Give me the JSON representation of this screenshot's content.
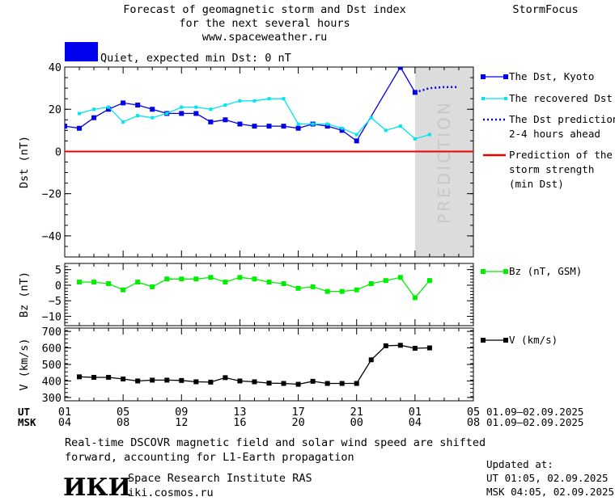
{
  "header": {
    "title_line1": "Forecast of geomagnetic storm and Dst index",
    "title_line2": "for the next several hours",
    "title_line3": "www.spaceweather.ru",
    "brand": "StormFocus",
    "status_text": "Quiet, expected min Dst: 0 nT",
    "status_color": "#0000ee"
  },
  "footer": {
    "note_line1": "Real-time DSCOVR magnetic field and solar wind speed are shifted",
    "note_line2": "forward, accounting for L1-Earth propagation",
    "logo_text": "ИКИ",
    "institute": "Space Research Institute RAS",
    "site": "iki.cosmos.ru",
    "updated_label": "Updated at:",
    "updated_ut": "UT   01:05, 02.09.2025",
    "updated_msk": "MSK 04:05, 02.09.2025"
  },
  "time_axis": {
    "ut_label": "UT",
    "msk_label": "MSK",
    "ut_ticks": [
      "01",
      "05",
      "09",
      "13",
      "17",
      "21",
      "01",
      "05"
    ],
    "msk_ticks": [
      "04",
      "08",
      "12",
      "16",
      "20",
      "00",
      "04",
      "08"
    ],
    "ut_range": "01.09–02.09.2025",
    "msk_range": "01.09–02.09.2025"
  },
  "chart_data": [
    {
      "id": "dst",
      "type": "line",
      "ylabel": "Dst (nT)",
      "ylim": [
        -50,
        40
      ],
      "yticks": [
        40,
        20,
        0,
        -20,
        -40
      ],
      "xlim": [
        0,
        28
      ],
      "prediction_band": [
        24,
        28
      ],
      "prediction_text": "PREDICTION",
      "series": [
        {
          "name": "The Dst, Kyoto",
          "color": "#0000ee",
          "style": "solid-square",
          "x": [
            0,
            1,
            2,
            3,
            4,
            5,
            6,
            7,
            8,
            9,
            10,
            11,
            12,
            13,
            14,
            15,
            16,
            17,
            18,
            19,
            20,
            23,
            24
          ],
          "y": [
            12,
            11,
            16,
            20,
            23,
            22,
            20,
            18,
            18,
            18,
            14,
            15,
            13,
            12,
            12,
            12,
            11,
            13,
            12,
            10,
            5,
            40,
            28
          ]
        },
        {
          "name": "The recovered Dst",
          "color": "#00e5ee",
          "style": "solid-small",
          "x": [
            1,
            2,
            3,
            4,
            5,
            6,
            7,
            8,
            9,
            10,
            11,
            12,
            13,
            14,
            15,
            16,
            17,
            18,
            19,
            20,
            21,
            22,
            23,
            24,
            25
          ],
          "y": [
            18,
            20,
            21,
            14,
            17,
            16,
            18,
            21,
            21,
            20,
            22,
            24,
            24,
            25,
            25,
            13,
            13,
            13,
            11,
            8,
            16,
            10,
            12,
            6,
            8
          ]
        },
        {
          "name": "The Dst prediction\n2-4 hours ahead",
          "color": "#0000ee",
          "style": "dotted",
          "x": [
            24,
            25,
            26,
            27
          ],
          "y": [
            28,
            30,
            30.5,
            30.5
          ]
        },
        {
          "name": "Prediction of the\nstorm strength\n(min Dst)",
          "color": "#ee0000",
          "style": "hline",
          "x": [
            0,
            28
          ],
          "y": [
            0,
            0
          ]
        }
      ]
    },
    {
      "id": "bz",
      "type": "line",
      "ylabel": "Bz (nT)",
      "ylim": [
        -13,
        7
      ],
      "yticks": [
        5,
        0,
        -5,
        -10
      ],
      "xlim": [
        0,
        28
      ],
      "series": [
        {
          "name": "Bz (nT, GSM)",
          "color": "#00ee00",
          "style": "solid-square",
          "x": [
            1,
            2,
            3,
            4,
            5,
            6,
            7,
            8,
            9,
            10,
            11,
            12,
            13,
            14,
            15,
            16,
            17,
            18,
            19,
            20,
            21,
            22,
            23,
            24,
            25
          ],
          "y": [
            1,
            1,
            0.5,
            -1.5,
            1,
            -0.5,
            2,
            2,
            2,
            2.5,
            1,
            2.5,
            2,
            1,
            0.5,
            -1,
            -0.5,
            -2,
            -2,
            -1.5,
            0.5,
            1.5,
            2.5,
            -4,
            1.5
          ]
        }
      ]
    },
    {
      "id": "v",
      "type": "line",
      "ylabel": "V (km/s)",
      "ylim": [
        280,
        720
      ],
      "yticks": [
        700,
        600,
        500,
        400,
        300
      ],
      "xlim": [
        0,
        28
      ],
      "series": [
        {
          "name": "V (km/s)",
          "color": "#000000",
          "style": "solid-square",
          "x": [
            1,
            2,
            3,
            4,
            5,
            6,
            7,
            8,
            9,
            10,
            11,
            12,
            13,
            14,
            15,
            16,
            17,
            18,
            19,
            20,
            21,
            22,
            23,
            24,
            25
          ],
          "y": [
            425,
            422,
            422,
            412,
            400,
            405,
            405,
            403,
            395,
            393,
            420,
            400,
            395,
            387,
            385,
            380,
            398,
            385,
            385,
            385,
            528,
            613,
            616,
            598,
            600
          ]
        }
      ]
    }
  ]
}
